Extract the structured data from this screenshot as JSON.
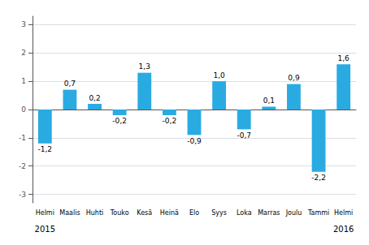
{
  "chart_data": {
    "type": "bar",
    "categories": [
      "Helmi",
      "Maalis",
      "Huhti",
      "Touko",
      "Kesä",
      "Heinä",
      "Elo",
      "Syys",
      "Loka",
      "Marras",
      "Joulu",
      "Tammi",
      "Helmi"
    ],
    "values": [
      -1.2,
      0.7,
      0.2,
      -0.2,
      1.3,
      -0.2,
      -0.9,
      1.0,
      -0.7,
      0.1,
      0.9,
      -2.2,
      1.6
    ],
    "value_labels": [
      "-1,2",
      "0,7",
      "0,2",
      "-0,2",
      "1,3",
      "-0,2",
      "-0,9",
      "1,0",
      "-0,7",
      "0,1",
      "0,9",
      "-2,2",
      "1,6"
    ],
    "data_labels": true,
    "color": "#29abe2",
    "ylim": [
      -3.3,
      3.3
    ],
    "yticks": [
      -3,
      -2,
      -1,
      0,
      1,
      2,
      3
    ],
    "grid": true,
    "annotations": [
      "2015",
      "2016"
    ]
  }
}
